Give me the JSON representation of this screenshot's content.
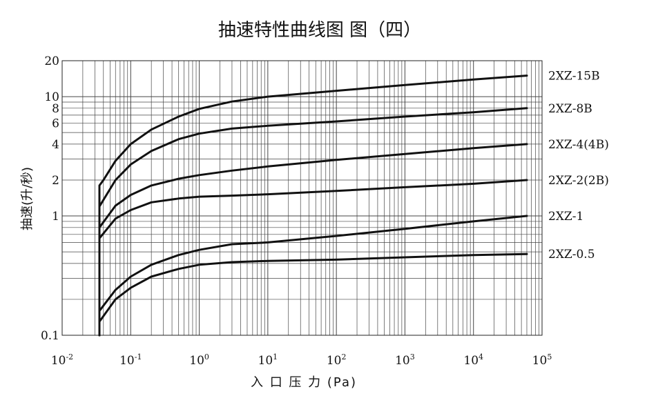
{
  "chart_data": {
    "type": "line",
    "title": "抽速特性曲线图 图（四）",
    "xlabel": "入 口 压 力 (Pa)",
    "ylabel": "抽速(升/秒)",
    "x_scale": "log",
    "y_scale": "log",
    "xlim": [
      0.01,
      100000
    ],
    "ylim": [
      0.1,
      20
    ],
    "grid": true,
    "legend": "right",
    "x_ticks": [
      {
        "base": "10",
        "exp": "-2"
      },
      {
        "base": "10",
        "exp": "-1"
      },
      {
        "base": "10",
        "exp": "0"
      },
      {
        "base": "10",
        "exp": "1"
      },
      {
        "base": "10",
        "exp": "2"
      },
      {
        "base": "10",
        "exp": "3"
      },
      {
        "base": "10",
        "exp": "4"
      },
      {
        "base": "10",
        "exp": "5"
      }
    ],
    "y_ticks": [
      {
        "value": 20,
        "label": "20"
      },
      {
        "value": 10,
        "label": "10"
      },
      {
        "value": 8,
        "label": "8"
      },
      {
        "value": 6,
        "label": "6"
      },
      {
        "value": 4,
        "label": "4"
      },
      {
        "value": 2,
        "label": "2"
      },
      {
        "value": 1,
        "label": "1"
      },
      {
        "value": 0.1,
        "label": "0.1"
      }
    ],
    "series": [
      {
        "name": "2XZ-15B",
        "x": [
          0.035,
          0.035,
          0.04,
          0.06,
          0.1,
          0.2,
          0.5,
          1,
          3,
          10,
          100,
          1000,
          10000,
          60000
        ],
        "y": [
          0.1,
          1.8,
          2.0,
          2.9,
          4.0,
          5.3,
          6.8,
          7.9,
          9.1,
          10,
          11.2,
          12.5,
          13.9,
          15
        ]
      },
      {
        "name": "2XZ-8B",
        "x": [
          0.035,
          0.035,
          0.06,
          0.1,
          0.2,
          0.5,
          1,
          3,
          10,
          100,
          1000,
          10000,
          60000
        ],
        "y": [
          0.1,
          1.2,
          2.0,
          2.7,
          3.5,
          4.4,
          4.9,
          5.4,
          5.7,
          6.2,
          6.8,
          7.4,
          8
        ]
      },
      {
        "name": "2XZ-4(4B)",
        "x": [
          0.035,
          0.035,
          0.06,
          0.1,
          0.2,
          0.5,
          1,
          3,
          10,
          100,
          1000,
          10000,
          60000
        ],
        "y": [
          0.1,
          0.8,
          1.22,
          1.5,
          1.8,
          2.05,
          2.2,
          2.4,
          2.6,
          2.95,
          3.3,
          3.7,
          4
        ]
      },
      {
        "name": "2XZ-2(2B)",
        "x": [
          0.035,
          0.035,
          0.06,
          0.1,
          0.2,
          0.5,
          1,
          3,
          10,
          100,
          1000,
          10000,
          60000
        ],
        "y": [
          0.1,
          0.65,
          0.95,
          1.12,
          1.3,
          1.4,
          1.45,
          1.48,
          1.52,
          1.62,
          1.74,
          1.86,
          2
        ]
      },
      {
        "name": "2XZ-1",
        "x": [
          0.035,
          0.035,
          0.06,
          0.1,
          0.2,
          0.5,
          1,
          3,
          10,
          100,
          1000,
          10000,
          60000
        ],
        "y": [
          0.1,
          0.16,
          0.24,
          0.31,
          0.39,
          0.47,
          0.52,
          0.58,
          0.6,
          0.68,
          0.78,
          0.9,
          1
        ]
      },
      {
        "name": "2XZ-0.5",
        "x": [
          0.035,
          0.035,
          0.06,
          0.1,
          0.2,
          0.5,
          1,
          3,
          10,
          100,
          1000,
          10000,
          60000
        ],
        "y": [
          0.1,
          0.13,
          0.2,
          0.25,
          0.31,
          0.36,
          0.39,
          0.41,
          0.42,
          0.43,
          0.45,
          0.47,
          0.48
        ]
      }
    ]
  }
}
